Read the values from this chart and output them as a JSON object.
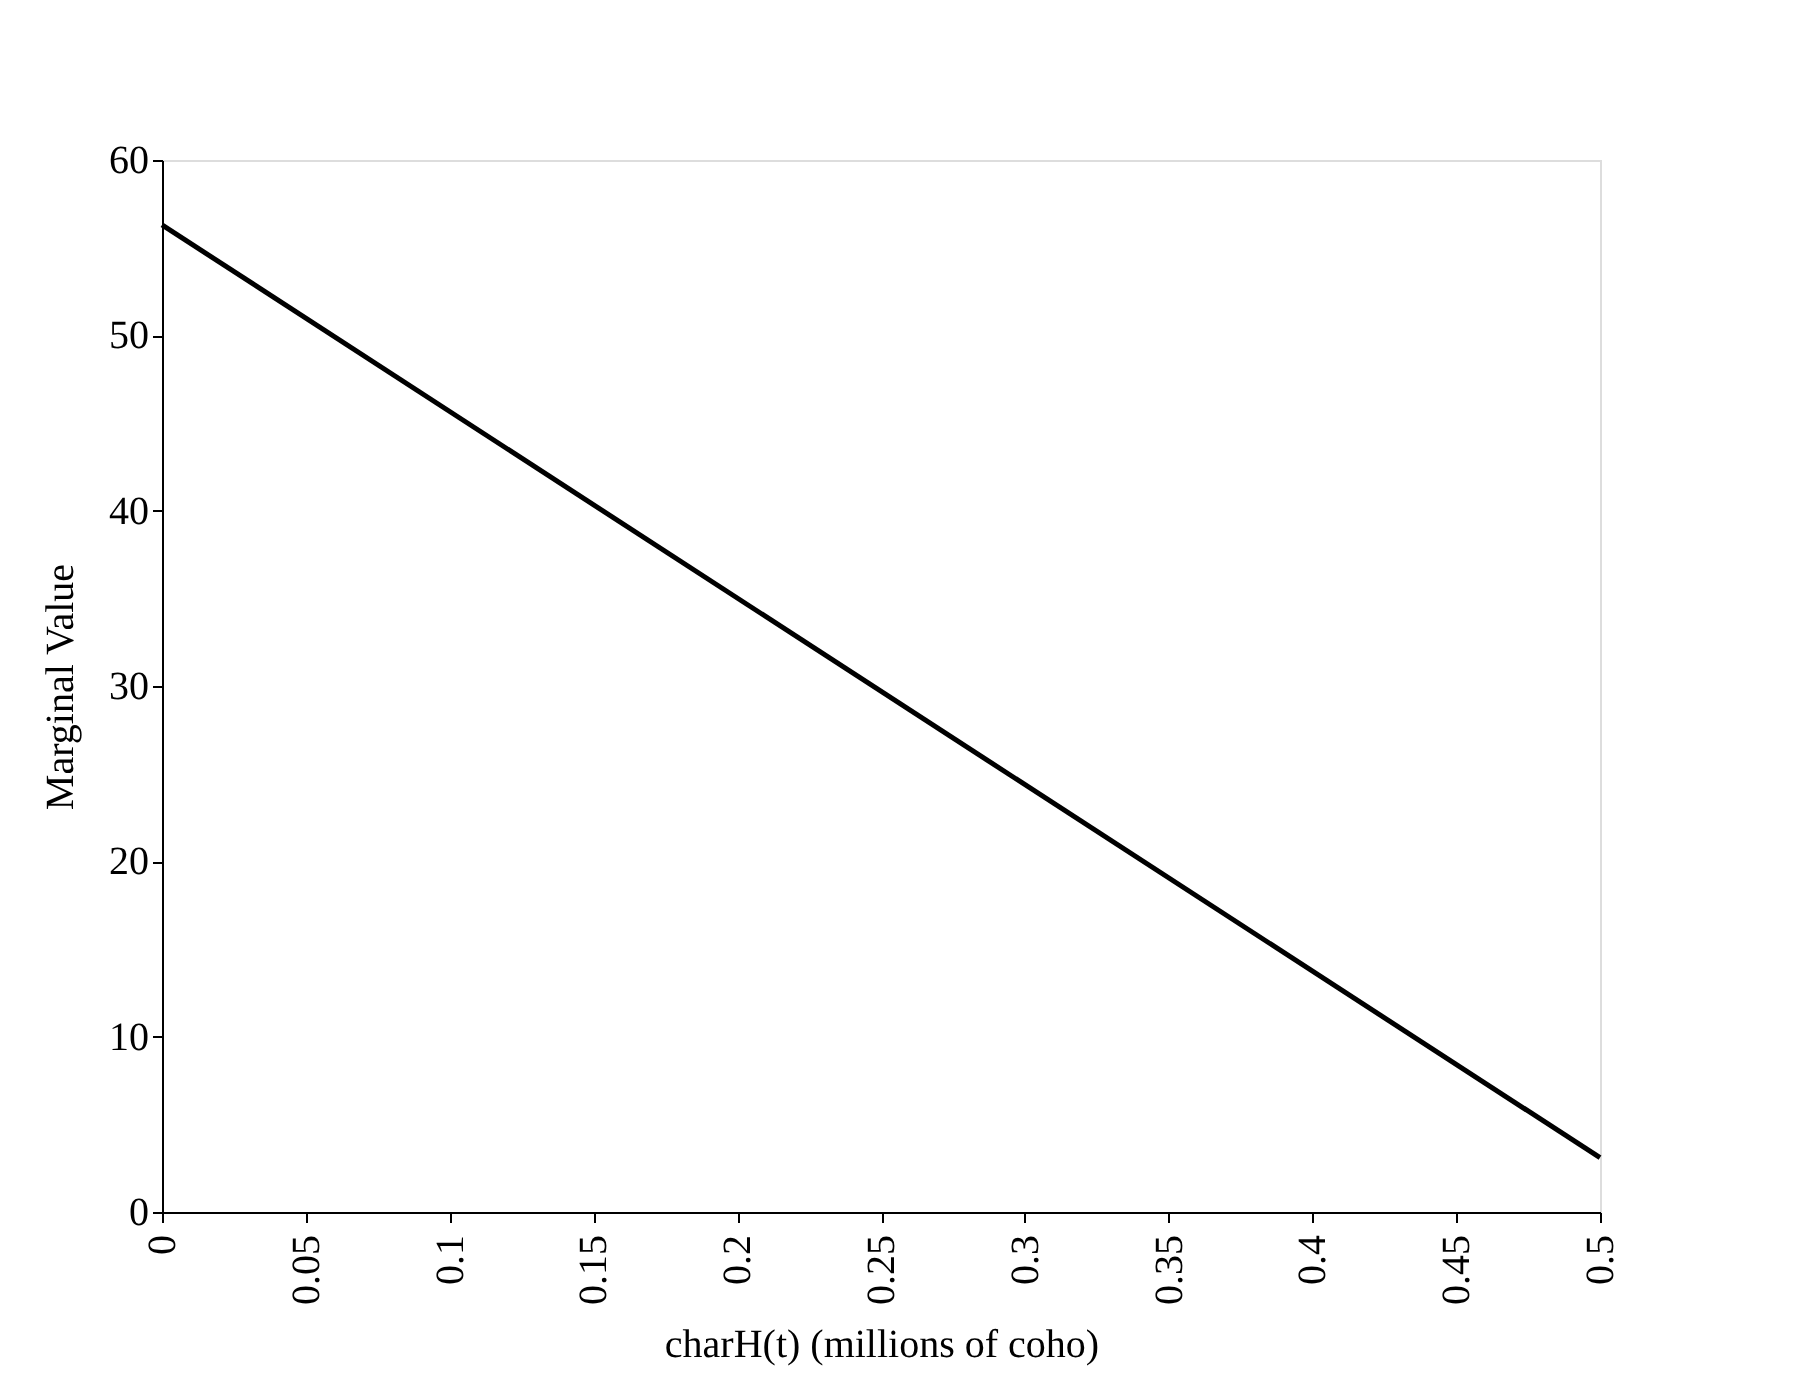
{
  "chart_data": {
    "type": "line",
    "xlabel": "charH(t) (millions of coho)",
    "ylabel": "Marginal Value",
    "x": [
      0,
      0.5
    ],
    "series": [
      {
        "color": "#000000",
        "values": [
          56.3,
          3.1
        ]
      }
    ],
    "xlim": [
      0,
      0.5
    ],
    "xticks": [
      0,
      0.05,
      0.1,
      0.15,
      0.2,
      0.25,
      0.3,
      0.35,
      0.4,
      0.45,
      0.5
    ],
    "ylim": [
      0,
      60
    ],
    "yticks": [
      0,
      10,
      20,
      30,
      40,
      50,
      60
    ],
    "grid": false,
    "marker": "none",
    "line_style": "solid"
  }
}
